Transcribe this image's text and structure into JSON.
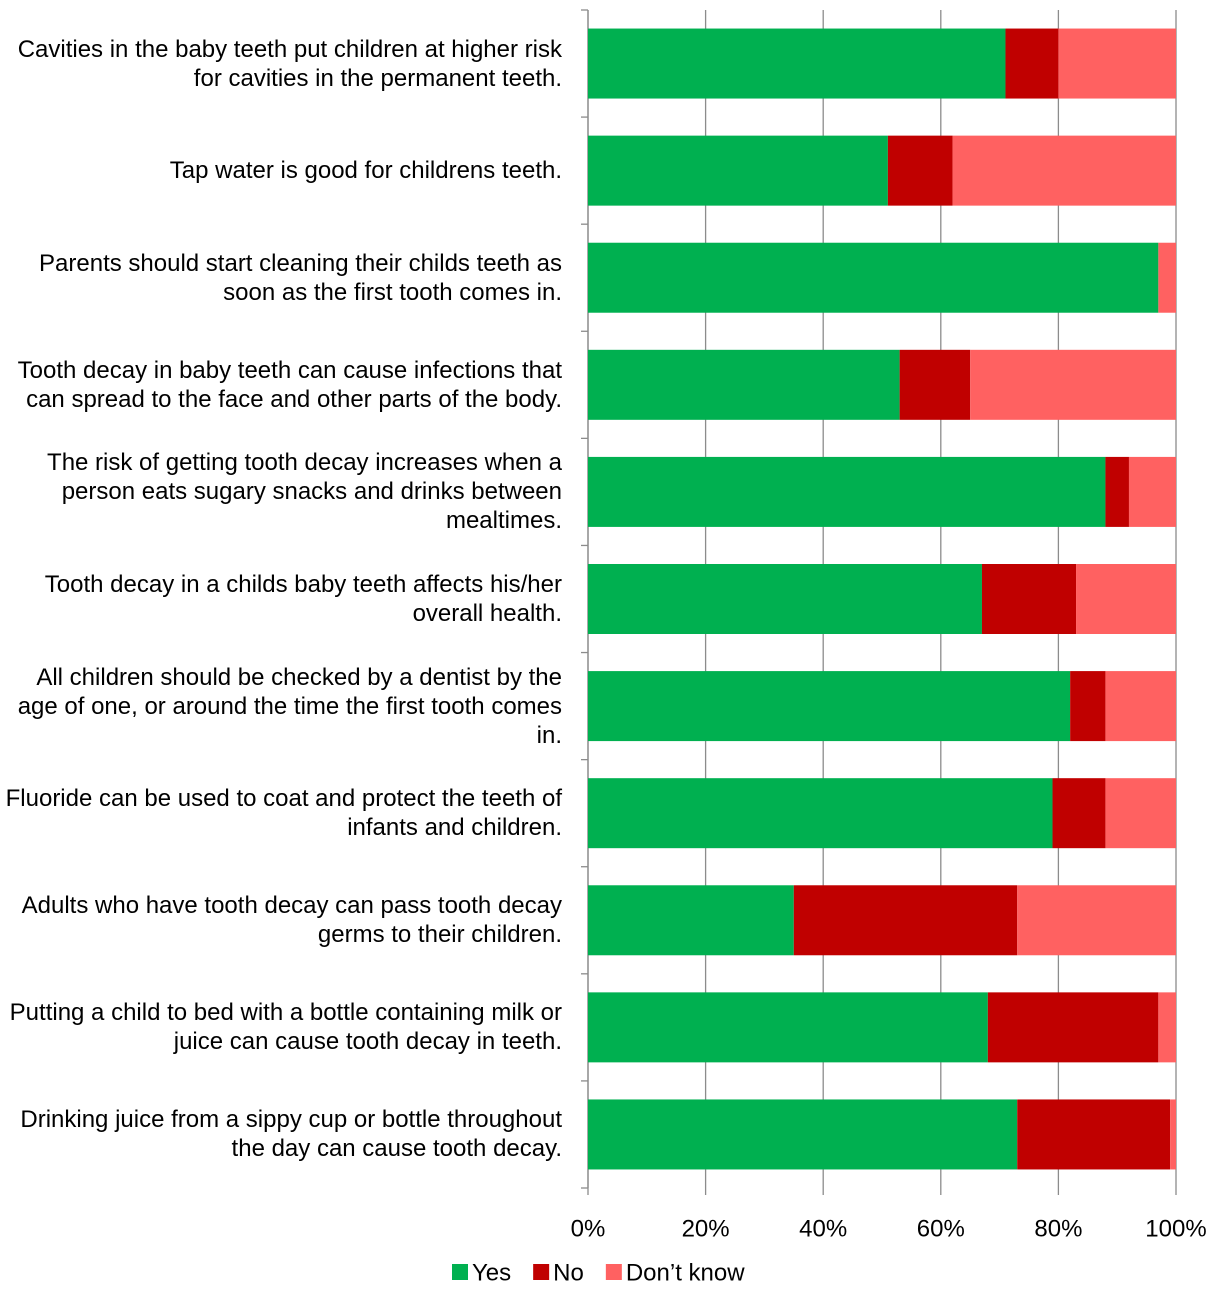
{
  "chart_data": {
    "type": "stacked-barh",
    "categories": [
      "Cavities in the baby teeth put children at higher risk for cavities in the permanent teeth.",
      "Tap water is good for childrens teeth.",
      "Parents should start cleaning their childs teeth as soon as the first tooth comes in.",
      "Tooth decay in baby teeth can cause infections that can spread to the face and other parts of the body.",
      "The risk of getting tooth decay increases when a person eats sugary snacks and drinks between mealtimes.",
      "Tooth decay in a childs baby teeth affects his/her overall health.",
      "All children should be checked by a dentist by the age of one, or around the time the first tooth comes in.",
      "Fluoride can be used to coat and protect the teeth of infants and children.",
      "Adults who have tooth decay can pass tooth decay germs to their children.",
      "Putting a child to bed with a bottle containing milk or juice can cause tooth decay in teeth.",
      "Drinking juice from a sippy cup or bottle throughout the day can cause tooth decay."
    ],
    "series": [
      {
        "name": "Yes",
        "color": "#00b050",
        "values": [
          71,
          51,
          97,
          53,
          88,
          67,
          82,
          79,
          35,
          68,
          73
        ]
      },
      {
        "name": "No",
        "color": "#c00000",
        "values": [
          9,
          11,
          0,
          12,
          4,
          16,
          6,
          9,
          38,
          29,
          26
        ]
      },
      {
        "name": "Don’t know",
        "color": "#ff6161",
        "values": [
          20,
          38,
          3,
          35,
          8,
          17,
          12,
          12,
          27,
          3,
          1
        ]
      }
    ],
    "xlim": [
      0,
      100
    ],
    "xticks": [
      {
        "value": 0,
        "label": "0%"
      },
      {
        "value": 20,
        "label": "20%"
      },
      {
        "value": 40,
        "label": "40%"
      },
      {
        "value": 60,
        "label": "60%"
      },
      {
        "value": 80,
        "label": "80%"
      },
      {
        "value": 100,
        "label": "100%"
      }
    ],
    "grid": true,
    "legend": "bottom"
  }
}
